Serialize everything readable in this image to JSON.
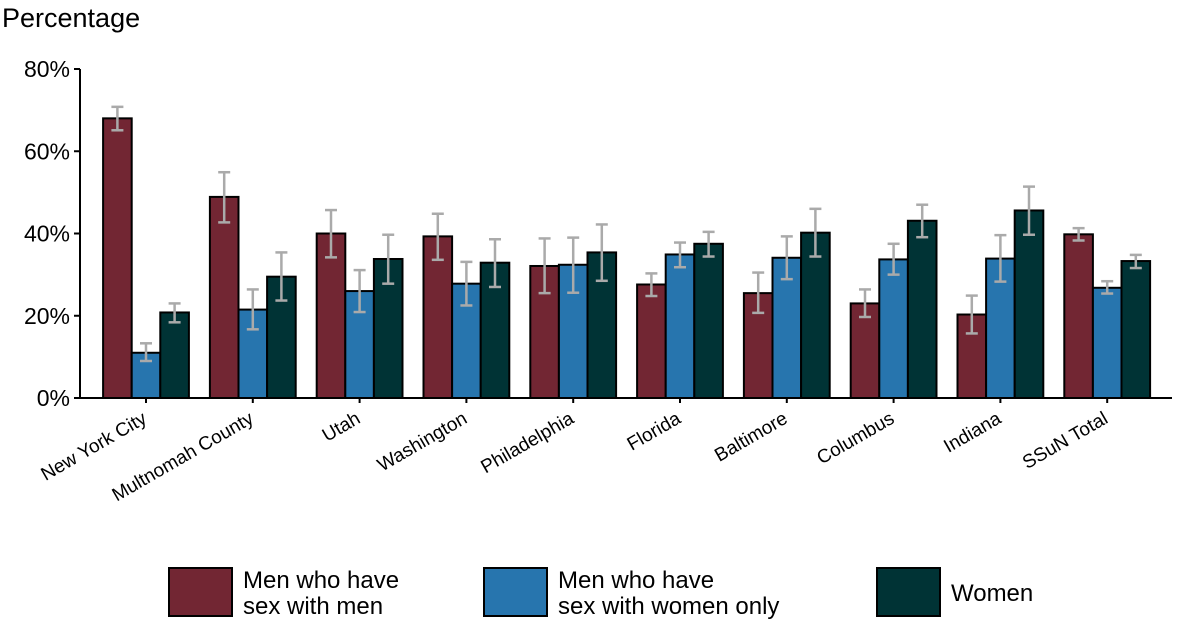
{
  "chart_data": {
    "type": "bar",
    "title": "",
    "ylabel": "Percentage",
    "xlabel": "",
    "ylim": [
      0,
      80
    ],
    "yticks": [
      "0%",
      "20%",
      "40%",
      "60%",
      "80%"
    ],
    "ytick_values": [
      0,
      20,
      40,
      60,
      80
    ],
    "grid": false,
    "legend_position": "bottom",
    "categories": [
      "New York City",
      "Multnomah County",
      "Utah",
      "Washington",
      "Philadelphia",
      "Florida",
      "Baltimore",
      "Columbus",
      "Indiana",
      "SSuN Total"
    ],
    "series": [
      {
        "name": "Men who have sex with men",
        "legend_lines": [
          "Men who have",
          "sex with men"
        ],
        "color": "#722633",
        "values": [
          68.0,
          48.9,
          40.0,
          39.3,
          32.1,
          27.6,
          25.5,
          23.0,
          20.3,
          39.8
        ],
        "ci_low": [
          65.1,
          42.7,
          34.2,
          33.6,
          25.5,
          24.8,
          20.7,
          19.7,
          15.7,
          38.3
        ],
        "ci_high": [
          70.8,
          54.9,
          45.7,
          44.8,
          38.8,
          30.3,
          30.5,
          26.4,
          24.9,
          41.3
        ]
      },
      {
        "name": "Men who have sex with women only",
        "legend_lines": [
          "Men who have",
          "sex with women only"
        ],
        "color": "#2775AE",
        "values": [
          11.0,
          21.5,
          26.0,
          27.8,
          32.4,
          34.9,
          34.1,
          33.7,
          33.9,
          26.8
        ],
        "ci_low": [
          9.0,
          16.7,
          20.9,
          22.5,
          25.6,
          31.8,
          28.9,
          30.0,
          28.3,
          25.4
        ],
        "ci_high": [
          13.3,
          26.4,
          31.1,
          33.1,
          39.0,
          37.8,
          39.3,
          37.5,
          39.6,
          28.4
        ]
      },
      {
        "name": "Women",
        "legend_lines": [
          "Women"
        ],
        "color": "#003335",
        "values": [
          20.8,
          29.5,
          33.8,
          32.9,
          35.4,
          37.5,
          40.2,
          43.1,
          45.6,
          33.3
        ],
        "ci_low": [
          18.4,
          23.7,
          27.8,
          27.0,
          28.5,
          34.4,
          34.4,
          39.1,
          39.7,
          31.6
        ],
        "ci_high": [
          23.0,
          35.4,
          39.7,
          38.6,
          42.2,
          40.4,
          46.0,
          47.0,
          51.4,
          34.8
        ]
      }
    ],
    "error_bar_color": "#AAAAAA"
  }
}
